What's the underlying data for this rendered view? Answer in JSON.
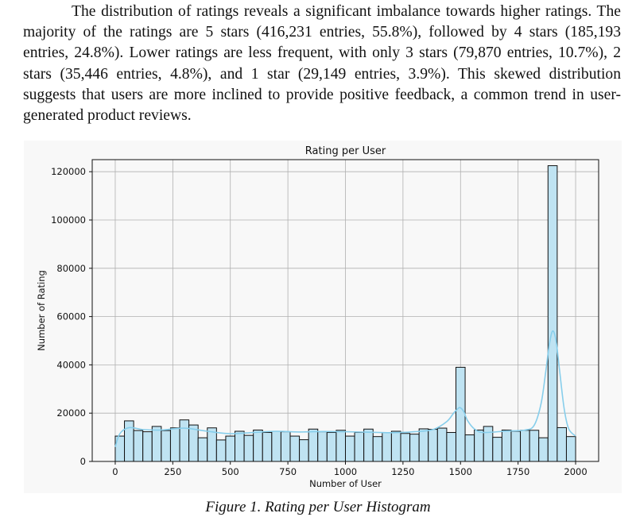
{
  "paragraph": "The distribution of ratings reveals a significant imbalance towards higher ratings. The majority of the ratings are 5 stars (416,231 entries, 55.8%), followed by 4 stars (185,193 entries, 24.8%). Lower ratings are less frequent, with only 3 stars (79,870 entries, 10.7%), 2 stars (35,446 entries, 4.8%), and 1 star (29,149 entries, 3.9%). This skewed distribution suggests that users are more inclined to provide positive feedback, a common trend in user-generated product reviews.",
  "caption": "Figure 1. Rating per User Histogram",
  "colors": {
    "bar_fill": "#bfe3f2",
    "bar_edge": "#111111",
    "kde_line": "#87ceeb",
    "grid": "#b0b0b0"
  },
  "chart_data": {
    "type": "bar",
    "title": "Rating per User",
    "xlabel": "Number of User",
    "ylabel": "Number of Rating",
    "xlim": [
      -100,
      2100
    ],
    "ylim": [
      0,
      125000
    ],
    "grid": true,
    "xticks": [
      0,
      250,
      500,
      750,
      1000,
      1250,
      1500,
      1750,
      2000
    ],
    "yticks": [
      0,
      20000,
      40000,
      60000,
      80000,
      100000,
      120000
    ],
    "bin_start": 0,
    "bin_width": 40,
    "values": [
      10500,
      16800,
      12800,
      12300,
      14500,
      12800,
      13900,
      17200,
      15100,
      9800,
      13900,
      8900,
      10500,
      12500,
      10800,
      13000,
      12000,
      12500,
      12300,
      10500,
      9000,
      13400,
      12300,
      12000,
      12900,
      10500,
      12000,
      13400,
      10300,
      12000,
      12500,
      11600,
      11300,
      13500,
      13300,
      13800,
      12000,
      39000,
      11000,
      13000,
      14500,
      10000,
      13000,
      12500,
      12900,
      12900,
      9800,
      122500,
      14000,
      10300
    ],
    "kde_x": [
      0,
      20,
      60,
      120,
      200,
      300,
      400,
      500,
      600,
      700,
      800,
      900,
      1000,
      1100,
      1200,
      1300,
      1380,
      1440,
      1470,
      1490,
      1500,
      1515,
      1530,
      1560,
      1600,
      1700,
      1780,
      1820,
      1850,
      1870,
      1885,
      1900,
      1915,
      1930,
      1950,
      1970,
      2000
    ],
    "kde_y": [
      6000,
      11500,
      14000,
      13200,
      13000,
      13800,
      12500,
      11500,
      12000,
      12500,
      12200,
      12400,
      12300,
      12100,
      11900,
      12300,
      13200,
      16500,
      20000,
      22000,
      22200,
      20500,
      17000,
      13500,
      12000,
      12600,
      13000,
      15000,
      24000,
      37000,
      48000,
      54000,
      50000,
      38000,
      22000,
      13500,
      10500
    ]
  }
}
